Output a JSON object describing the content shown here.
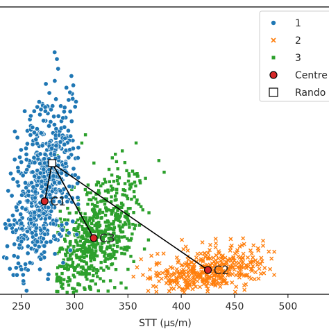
{
  "chart_data": {
    "type": "scatter",
    "xlabel": "STT (μs/m)",
    "ylabel": "",
    "title": "",
    "xlim": [
      220,
      530
    ],
    "xticks": [
      "250",
      "300",
      "350",
      "400",
      "450",
      "500"
    ],
    "yticks": [],
    "grid": false,
    "legend": {
      "placement": "top-right",
      "entries": [
        {
          "label": "1",
          "marker": "circle",
          "color": "#1f77b4"
        },
        {
          "label": "2",
          "marker": "x",
          "color": "#ff7f0e"
        },
        {
          "label": "3",
          "marker": "square",
          "color": "#2ca02c"
        },
        {
          "label": "Centre",
          "marker": "circle",
          "color": "#d62728"
        },
        {
          "label": "Rando",
          "marker": "square-open",
          "color": "#000000"
        }
      ]
    },
    "series": [
      {
        "name": "1",
        "color": "#1f77b4",
        "marker": "circle",
        "point_count": 600,
        "x_mean": 272,
        "x_sd": 16,
        "x_min": 222,
        "x_max": 305
      },
      {
        "name": "2",
        "color": "#ff7f0e",
        "marker": "x",
        "point_count": 420,
        "x_mean": 425,
        "x_sd": 30,
        "x_min": 355,
        "x_max": 490
      },
      {
        "name": "3",
        "color": "#2ca02c",
        "marker": "square",
        "point_count": 650,
        "x_mean": 318,
        "x_sd": 22,
        "x_min": 283,
        "x_max": 390
      }
    ],
    "centres": [
      {
        "label": "C1",
        "x": 272
      },
      {
        "label": "C2",
        "x": 425
      },
      {
        "label": "C3",
        "x": 318
      }
    ],
    "random_point": {
      "x": 279
    }
  }
}
